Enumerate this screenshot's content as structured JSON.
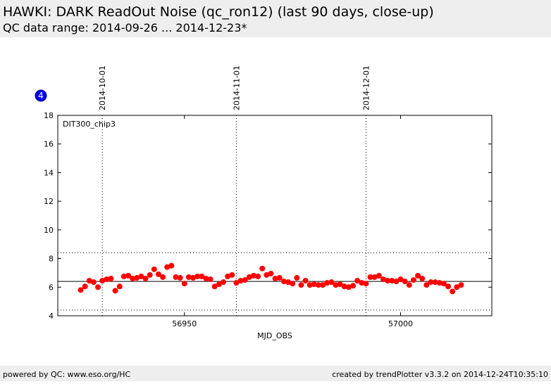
{
  "header": {
    "title": "HAWKI: DARK ReadOut Noise (qc_ron12) (last 90 days, close-up)",
    "subtitle": "QC data range: 2014-09-26 ... 2014-12-23*"
  },
  "badge": "4",
  "footer": {
    "left": "powered by QC: www.eso.org/HC",
    "right": "created by trendPlotter v3.3.2 on 2014-12-24T10:35:10"
  },
  "chart_data": {
    "type": "scatter",
    "color": "#ff0000",
    "xlabel": "MJD_OBS",
    "panel_label": "DIT300_chip3",
    "xlim": [
      56920.7,
      57021.1
    ],
    "xticks": [
      56950,
      57000
    ],
    "ylim": [
      4,
      18
    ],
    "yticks": [
      4,
      6,
      8,
      10,
      12,
      14,
      16,
      18
    ],
    "date_lines": [
      {
        "label": "2014-10-01",
        "x": 56931
      },
      {
        "label": "2014-11-01",
        "x": 56962
      },
      {
        "label": "2014-12-01",
        "x": 56992
      }
    ],
    "hlines": [
      {
        "value": 6.4,
        "style": "solid"
      },
      {
        "value": 8.4,
        "style": "dotted"
      },
      {
        "value": 4.4,
        "style": "dotted"
      }
    ],
    "x": [
      56926,
      56927,
      56928,
      56929,
      56930,
      56931,
      56932,
      56933,
      56934,
      56935,
      56936,
      56937,
      56938,
      56939,
      56940,
      56941,
      56942,
      56943,
      56944,
      56945,
      56946,
      56947,
      56948,
      56949,
      56950,
      56951,
      56952,
      56953,
      56954,
      56955,
      56956,
      56957,
      56958,
      56959,
      56960,
      56961,
      56962,
      56963,
      56964,
      56965,
      56966,
      56967,
      56968,
      56969,
      56970,
      56971,
      56972,
      56973,
      56974,
      56975,
      56976,
      56977,
      56978,
      56979,
      56980,
      56981,
      56982,
      56983,
      56984,
      56985,
      56986,
      56987,
      56988,
      56989,
      56990,
      56991,
      56992,
      56993,
      56994,
      56995,
      56996,
      56997,
      56998,
      56999,
      57000,
      57001,
      57002,
      57003,
      57004,
      57005,
      57006,
      57007,
      57008,
      57009,
      57010,
      57011,
      57012,
      57013,
      57014
    ],
    "values": [
      5.8,
      6.05,
      6.45,
      6.35,
      6.0,
      6.45,
      6.55,
      6.6,
      5.75,
      6.05,
      6.75,
      6.8,
      6.6,
      6.65,
      6.75,
      6.6,
      6.85,
      7.25,
      6.9,
      6.7,
      7.4,
      7.5,
      6.7,
      6.65,
      6.25,
      6.7,
      6.65,
      6.75,
      6.75,
      6.6,
      6.55,
      6.05,
      6.2,
      6.35,
      6.75,
      6.85,
      6.3,
      6.45,
      6.5,
      6.7,
      6.8,
      6.75,
      7.3,
      6.85,
      6.95,
      6.6,
      6.65,
      6.4,
      6.35,
      6.25,
      6.65,
      6.15,
      6.45,
      6.15,
      6.2,
      6.15,
      6.15,
      6.3,
      6.35,
      6.15,
      6.2,
      6.05,
      6.0,
      6.1,
      6.45,
      6.3,
      6.25,
      6.7,
      6.7,
      6.8,
      6.55,
      6.45,
      6.45,
      6.4,
      6.55,
      6.4,
      6.15,
      6.5,
      6.8,
      6.6,
      6.15,
      6.35,
      6.35,
      6.3,
      6.25,
      6.05,
      5.7,
      6.0,
      6.15
    ]
  }
}
